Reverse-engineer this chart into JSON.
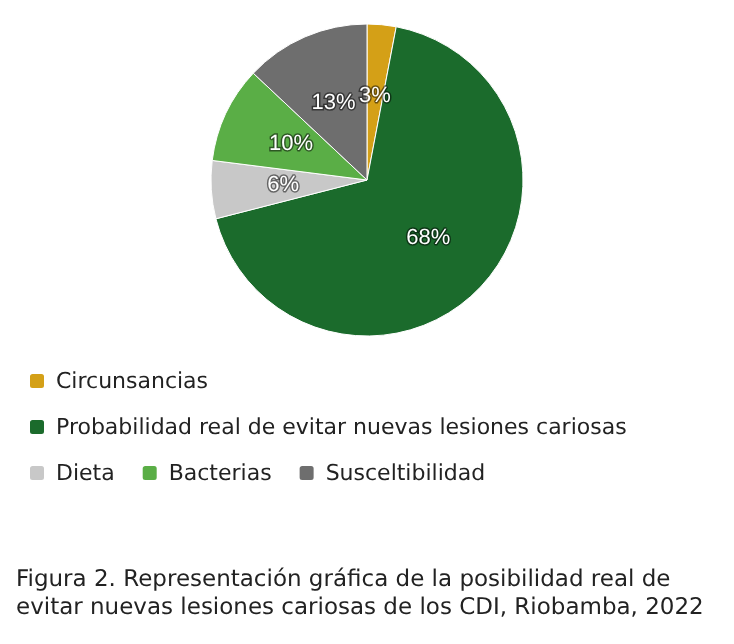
{
  "chart_data": {
    "type": "pie",
    "title": "Figura 2. Representación gráfica de la posibilidad real de evitar nuevas lesiones cariosas de los CDI, Riobamba, 2022",
    "categories": [
      "Circunsancias",
      "Probabilidad real de evitar nuevas lesiones cariosas",
      "Dieta",
      "Bacterias",
      "Susceltibilidad"
    ],
    "values": [
      3,
      68,
      6,
      10,
      13
    ],
    "colors": [
      "#d4a017",
      "#1b6b2c",
      "#c8c8c8",
      "#5aae46",
      "#6e6e6e"
    ],
    "value_labels": [
      "3%",
      "68%",
      "6%",
      "10%",
      "13%"
    ],
    "legend": "bottom"
  }
}
